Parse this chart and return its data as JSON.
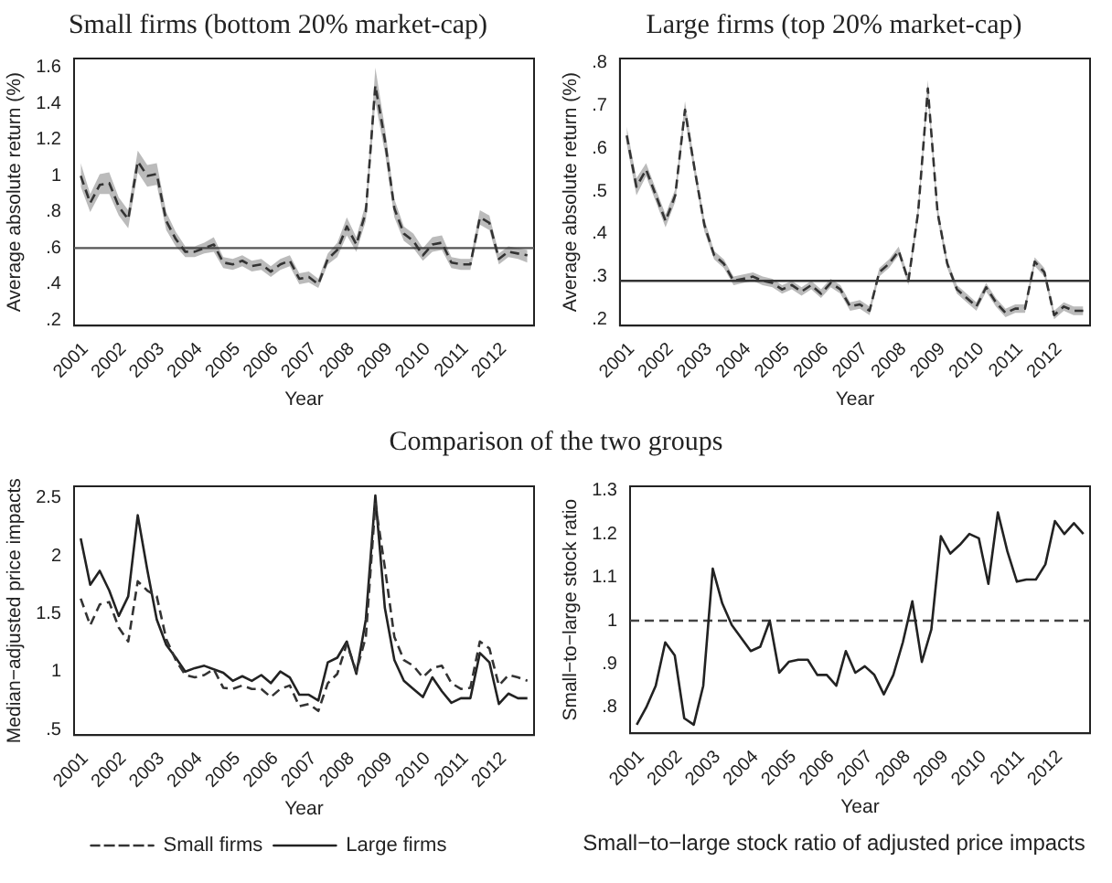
{
  "chart_data": [
    {
      "type": "line",
      "title": "Small firms (bottom 20% market-cap)",
      "xlabel": "Year",
      "ylabel": "Average absolute return (%)",
      "grid": false,
      "marker": "none",
      "x": [
        2000.875,
        2001.125,
        2001.375,
        2001.625,
        2001.875,
        2002.125,
        2002.375,
        2002.625,
        2002.875,
        2003.125,
        2003.375,
        2003.625,
        2003.875,
        2004.125,
        2004.375,
        2004.625,
        2004.875,
        2005.125,
        2005.375,
        2005.625,
        2005.875,
        2006.125,
        2006.375,
        2006.625,
        2006.875,
        2007.125,
        2007.375,
        2007.625,
        2007.875,
        2008.125,
        2008.375,
        2008.625,
        2008.875,
        2009.125,
        2009.375,
        2009.625,
        2009.875,
        2010.125,
        2010.375,
        2010.625,
        2010.875,
        2011.125,
        2011.375,
        2011.625,
        2011.875,
        2012.125,
        2012.375,
        2012.625
      ],
      "series": [
        {
          "color": "#333333",
          "line_style": "dashed",
          "values": [
            1.0,
            0.85,
            0.95,
            0.96,
            0.83,
            0.76,
            1.08,
            1.0,
            1.01,
            0.75,
            0.65,
            0.58,
            0.58,
            0.6,
            0.62,
            0.52,
            0.51,
            0.53,
            0.5,
            0.51,
            0.47,
            0.51,
            0.53,
            0.43,
            0.44,
            0.4,
            0.54,
            0.59,
            0.72,
            0.62,
            0.8,
            1.5,
            1.2,
            0.82,
            0.68,
            0.64,
            0.56,
            0.62,
            0.63,
            0.52,
            0.51,
            0.51,
            0.77,
            0.74,
            0.54,
            0.58,
            0.57,
            0.56
          ],
          "lower": [
            0.94,
            0.8,
            0.9,
            0.9,
            0.78,
            0.71,
            1.02,
            0.94,
            0.95,
            0.7,
            0.61,
            0.55,
            0.55,
            0.57,
            0.58,
            0.49,
            0.48,
            0.5,
            0.47,
            0.48,
            0.44,
            0.48,
            0.5,
            0.4,
            0.41,
            0.38,
            0.51,
            0.55,
            0.67,
            0.58,
            0.75,
            1.41,
            1.13,
            0.77,
            0.64,
            0.6,
            0.53,
            0.58,
            0.59,
            0.49,
            0.48,
            0.48,
            0.73,
            0.7,
            0.51,
            0.55,
            0.54,
            0.52
          ],
          "upper": [
            1.07,
            0.9,
            1.01,
            1.02,
            0.88,
            0.81,
            1.14,
            1.06,
            1.07,
            0.8,
            0.69,
            0.61,
            0.61,
            0.63,
            0.66,
            0.55,
            0.54,
            0.56,
            0.53,
            0.54,
            0.5,
            0.54,
            0.56,
            0.46,
            0.47,
            0.43,
            0.57,
            0.63,
            0.77,
            0.66,
            0.85,
            1.6,
            1.27,
            0.87,
            0.72,
            0.68,
            0.6,
            0.66,
            0.67,
            0.55,
            0.54,
            0.54,
            0.81,
            0.78,
            0.57,
            0.61,
            0.6,
            0.59
          ]
        }
      ],
      "xlim": [
        2000.7,
        2012.8
      ],
      "xticks": [
        2001,
        2002,
        2003,
        2004,
        2005,
        2006,
        2007,
        2008,
        2009,
        2010,
        2011,
        2012
      ],
      "ylim": [
        0.17,
        1.65
      ],
      "yticks": [
        {
          "value": 0.2,
          "label": ".2"
        },
        {
          "value": 0.4,
          "label": ".4"
        },
        {
          "value": 0.6,
          "label": ".6"
        },
        {
          "value": 0.8,
          "label": ".8"
        },
        1,
        {
          "value": 1.2,
          "label": "1.2"
        },
        {
          "value": 1.4,
          "label": "1.4"
        },
        {
          "value": 1.6,
          "label": "1.6"
        }
      ],
      "ref_lines": [
        {
          "axis": "y",
          "value": 0.6,
          "color": "#555555",
          "line_style": "solid"
        }
      ]
    },
    {
      "type": "line",
      "title": "Large firms (top 20% market-cap)",
      "xlabel": "Year",
      "ylabel": "Average absolute return (%)",
      "grid": false,
      "marker": "none",
      "x": [
        2000.875,
        2001.125,
        2001.375,
        2001.625,
        2001.875,
        2002.125,
        2002.375,
        2002.625,
        2002.875,
        2003.125,
        2003.375,
        2003.625,
        2003.875,
        2004.125,
        2004.375,
        2004.625,
        2004.875,
        2005.125,
        2005.375,
        2005.625,
        2005.875,
        2006.125,
        2006.375,
        2006.625,
        2006.875,
        2007.125,
        2007.375,
        2007.625,
        2007.875,
        2008.125,
        2008.375,
        2008.625,
        2008.875,
        2009.125,
        2009.375,
        2009.625,
        2009.875,
        2010.125,
        2010.375,
        2010.625,
        2010.875,
        2011.125,
        2011.375,
        2011.625,
        2011.875,
        2012.125,
        2012.375,
        2012.625
      ],
      "series": [
        {
          "color": "#333333",
          "line_style": "dashed",
          "values": [
            0.63,
            0.51,
            0.55,
            0.49,
            0.43,
            0.49,
            0.69,
            0.55,
            0.42,
            0.35,
            0.33,
            0.29,
            0.295,
            0.3,
            0.29,
            0.285,
            0.27,
            0.28,
            0.265,
            0.28,
            0.26,
            0.285,
            0.27,
            0.23,
            0.235,
            0.22,
            0.31,
            0.33,
            0.36,
            0.29,
            0.45,
            0.74,
            0.45,
            0.33,
            0.27,
            0.25,
            0.23,
            0.275,
            0.24,
            0.215,
            0.225,
            0.225,
            0.335,
            0.31,
            0.21,
            0.23,
            0.22,
            0.22
          ],
          "lower": [
            0.61,
            0.49,
            0.535,
            0.475,
            0.415,
            0.475,
            0.67,
            0.535,
            0.405,
            0.34,
            0.32,
            0.28,
            0.285,
            0.29,
            0.28,
            0.275,
            0.26,
            0.27,
            0.255,
            0.27,
            0.25,
            0.275,
            0.26,
            0.22,
            0.225,
            0.21,
            0.3,
            0.32,
            0.35,
            0.28,
            0.435,
            0.72,
            0.435,
            0.32,
            0.26,
            0.24,
            0.22,
            0.265,
            0.23,
            0.205,
            0.215,
            0.215,
            0.325,
            0.3,
            0.2,
            0.22,
            0.21,
            0.21
          ],
          "upper": [
            0.65,
            0.53,
            0.565,
            0.505,
            0.445,
            0.505,
            0.71,
            0.565,
            0.435,
            0.36,
            0.34,
            0.3,
            0.305,
            0.31,
            0.3,
            0.295,
            0.28,
            0.29,
            0.275,
            0.29,
            0.27,
            0.295,
            0.28,
            0.24,
            0.245,
            0.23,
            0.32,
            0.34,
            0.37,
            0.3,
            0.465,
            0.76,
            0.465,
            0.34,
            0.28,
            0.26,
            0.24,
            0.285,
            0.25,
            0.225,
            0.235,
            0.235,
            0.345,
            0.32,
            0.22,
            0.24,
            0.23,
            0.23
          ]
        }
      ],
      "xlim": [
        2000.7,
        2012.8
      ],
      "xticks": [
        2001,
        2002,
        2003,
        2004,
        2005,
        2006,
        2007,
        2008,
        2009,
        2010,
        2011,
        2012
      ],
      "ylim": [
        0.185,
        0.81
      ],
      "yticks": [
        {
          "value": 0.2,
          "label": ".2"
        },
        {
          "value": 0.3,
          "label": ".3"
        },
        {
          "value": 0.4,
          "label": ".4"
        },
        {
          "value": 0.5,
          "label": ".5"
        },
        {
          "value": 0.6,
          "label": ".6"
        },
        {
          "value": 0.7,
          "label": ".7"
        },
        {
          "value": 0.8,
          "label": ".8"
        }
      ],
      "ref_lines": [
        {
          "axis": "y",
          "value": 0.29,
          "color": "#333333",
          "line_style": "solid"
        }
      ]
    },
    {
      "type": "line",
      "title": "Comparison of the two groups",
      "xlabel": "Year",
      "ylabel": "Median−adjusted price impacts",
      "grid": false,
      "marker": "none",
      "legend": "bottom",
      "x": [
        2000.875,
        2001.125,
        2001.375,
        2001.625,
        2001.875,
        2002.125,
        2002.375,
        2002.625,
        2002.875,
        2003.125,
        2003.375,
        2003.625,
        2003.875,
        2004.125,
        2004.375,
        2004.625,
        2004.875,
        2005.125,
        2005.375,
        2005.625,
        2005.875,
        2006.125,
        2006.375,
        2006.625,
        2006.875,
        2007.125,
        2007.375,
        2007.625,
        2007.875,
        2008.125,
        2008.375,
        2008.625,
        2008.875,
        2009.125,
        2009.375,
        2009.625,
        2009.875,
        2010.125,
        2010.375,
        2010.625,
        2010.875,
        2011.125,
        2011.375,
        2011.625,
        2011.875,
        2012.125,
        2012.375,
        2012.625
      ],
      "series": [
        {
          "name": "Small firms",
          "color": "#333333",
          "line_style": "dashed",
          "values": [
            1.63,
            1.4,
            1.58,
            1.6,
            1.38,
            1.26,
            1.78,
            1.7,
            1.65,
            1.28,
            1.1,
            0.97,
            0.95,
            0.97,
            1.02,
            0.86,
            0.85,
            0.88,
            0.85,
            0.85,
            0.78,
            0.85,
            0.88,
            0.7,
            0.72,
            0.66,
            0.9,
            0.98,
            1.24,
            1.0,
            1.3,
            2.45,
            1.9,
            1.3,
            1.1,
            1.05,
            0.95,
            1.03,
            1.05,
            0.9,
            0.85,
            0.86,
            1.26,
            1.2,
            0.88,
            0.97,
            0.95,
            0.92
          ]
        },
        {
          "name": "Large firms",
          "color": "#222222",
          "line_style": "solid",
          "values": [
            2.15,
            1.75,
            1.87,
            1.7,
            1.48,
            1.65,
            2.35,
            1.88,
            1.45,
            1.23,
            1.12,
            1.0,
            1.03,
            1.05,
            1.02,
            0.99,
            0.92,
            0.96,
            0.92,
            0.97,
            0.9,
            1.0,
            0.95,
            0.8,
            0.8,
            0.75,
            1.08,
            1.12,
            1.26,
            0.98,
            1.45,
            2.52,
            1.55,
            1.1,
            0.92,
            0.85,
            0.78,
            0.95,
            0.83,
            0.73,
            0.77,
            0.77,
            1.16,
            1.08,
            0.72,
            0.81,
            0.77,
            0.77
          ]
        }
      ],
      "xlim": [
        2000.7,
        2012.8
      ],
      "xticks": [
        2001,
        2002,
        2003,
        2004,
        2005,
        2006,
        2007,
        2008,
        2009,
        2010,
        2011,
        2012
      ],
      "ylim": [
        0.45,
        2.6
      ],
      "yticks": [
        {
          "value": 0.5,
          "label": ".5"
        },
        1,
        1.5,
        2,
        2.5
      ]
    },
    {
      "type": "line",
      "xlabel": "Year",
      "ylabel": "Small−to−large stock ratio",
      "grid": false,
      "marker": "none",
      "annotations": [
        "Small−to−large stock ratio of adjusted price impacts"
      ],
      "x": [
        2000.875,
        2001.125,
        2001.375,
        2001.625,
        2001.875,
        2002.125,
        2002.375,
        2002.625,
        2002.875,
        2003.125,
        2003.375,
        2003.625,
        2003.875,
        2004.125,
        2004.375,
        2004.625,
        2004.875,
        2005.125,
        2005.375,
        2005.625,
        2005.875,
        2006.125,
        2006.375,
        2006.625,
        2006.875,
        2007.125,
        2007.375,
        2007.625,
        2007.875,
        2008.125,
        2008.375,
        2008.625,
        2008.875,
        2009.125,
        2009.375,
        2009.625,
        2009.875,
        2010.125,
        2010.375,
        2010.625,
        2010.875,
        2011.125,
        2011.375,
        2011.625,
        2011.875,
        2012.125,
        2012.375,
        2012.625
      ],
      "series": [
        {
          "color": "#222222",
          "line_style": "solid",
          "values": [
            0.76,
            0.8,
            0.85,
            0.95,
            0.92,
            0.775,
            0.76,
            0.85,
            1.12,
            1.04,
            0.99,
            0.96,
            0.93,
            0.94,
            1.0,
            0.88,
            0.905,
            0.91,
            0.91,
            0.875,
            0.875,
            0.85,
            0.93,
            0.88,
            0.895,
            0.875,
            0.83,
            0.875,
            0.95,
            1.045,
            0.905,
            0.98,
            1.195,
            1.155,
            1.175,
            1.2,
            1.19,
            1.085,
            1.25,
            1.16,
            1.09,
            1.095,
            1.095,
            1.13,
            1.23,
            1.2,
            1.225,
            1.2
          ]
        }
      ],
      "xlim": [
        2000.7,
        2012.8
      ],
      "xticks": [
        2001,
        2002,
        2003,
        2004,
        2005,
        2006,
        2007,
        2008,
        2009,
        2010,
        2011,
        2012
      ],
      "ylim": [
        0.74,
        1.31
      ],
      "yticks": [
        {
          "value": 0.8,
          "label": ".8"
        },
        {
          "value": 0.9,
          "label": ".9"
        },
        1,
        {
          "value": 1.1,
          "label": "1.1"
        },
        {
          "value": 1.2,
          "label": "1.2"
        },
        {
          "value": 1.3,
          "label": "1.3"
        }
      ],
      "ref_lines": [
        {
          "axis": "y",
          "value": 1,
          "color": "#444444",
          "line_style": "dashed"
        }
      ]
    }
  ]
}
